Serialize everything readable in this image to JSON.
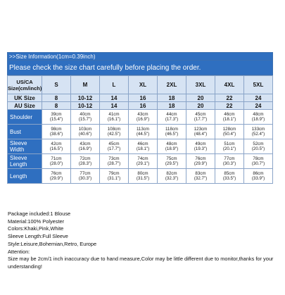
{
  "header": {
    "line1": ">>Size Information(1cm=0.39inch)",
    "line2": "Please check the size chart carefully before placing the order."
  },
  "table": {
    "corner_label": "US/CA Size(cm/inch)",
    "sizes": [
      "S",
      "M",
      "L",
      "XL",
      "2XL",
      "3XL",
      "4XL",
      "5XL"
    ],
    "uk_label": "UK Size",
    "uk_sizes": [
      "8",
      "10-12",
      "14",
      "16",
      "18",
      "20",
      "22",
      "24"
    ],
    "au_label": "AU Size",
    "au_sizes": [
      "8",
      "10-12",
      "14",
      "16",
      "18",
      "20",
      "22",
      "24"
    ],
    "rows": [
      {
        "label": "Shoulder",
        "values": [
          [
            "39cm",
            "(15.4\")"
          ],
          [
            "40cm",
            "(15.7\")"
          ],
          [
            "41cm",
            "(16.1\")"
          ],
          [
            "43cm",
            "(16.9\")"
          ],
          [
            "44cm",
            "(17.3\")"
          ],
          [
            "45cm",
            "(17.7\")"
          ],
          [
            "46cm",
            "(18.1\")"
          ],
          [
            "48cm",
            "(18.9\")"
          ]
        ]
      },
      {
        "label": "Bust",
        "values": [
          [
            "98cm",
            "(38.6\")"
          ],
          [
            "103cm",
            "(40.6\")"
          ],
          [
            "108cm",
            "(42.5\")"
          ],
          [
            "113cm",
            "(44.5\")"
          ],
          [
            "118cm",
            "(46.5\")"
          ],
          [
            "123cm",
            "(48.4\")"
          ],
          [
            "128cm",
            "(50.4\")"
          ],
          [
            "133cm",
            "(52.4\")"
          ]
        ]
      },
      {
        "label": "Sleeve Width",
        "values": [
          [
            "42cm",
            "(16.5\")"
          ],
          [
            "43cm",
            "(16.9\")"
          ],
          [
            "45cm",
            "(17.7\")"
          ],
          [
            "46cm",
            "(18.1\")"
          ],
          [
            "48cm",
            "(18.9\")"
          ],
          [
            "49cm",
            "(19.3\")"
          ],
          [
            "51cm",
            "(20.1\")"
          ],
          [
            "52cm",
            "(20.5\")"
          ]
        ]
      },
      {
        "label": "Sleeve Length",
        "values": [
          [
            "71cm",
            "(28.0\")"
          ],
          [
            "72cm",
            "(28.3\")"
          ],
          [
            "73cm",
            "(28.7\")"
          ],
          [
            "74cm",
            "(29.1\")"
          ],
          [
            "75cm",
            "(29.5\")"
          ],
          [
            "76cm",
            "(29.9\")"
          ],
          [
            "77cm",
            "(30.3\")"
          ],
          [
            "78cm",
            "(30.7\")"
          ]
        ]
      },
      {
        "label": "Length",
        "values": [
          [
            "76cm",
            "(29.9\")"
          ],
          [
            "77cm",
            "(30.3\")"
          ],
          [
            "79cm",
            "(31.1\")"
          ],
          [
            "80cm",
            "(31.5\")"
          ],
          [
            "82cm",
            "(32.3\")"
          ],
          [
            "83cm",
            "(32.7\")"
          ],
          [
            "85cm",
            "(33.5\")"
          ],
          [
            "86cm",
            "(33.9\")"
          ]
        ]
      }
    ]
  },
  "notes": {
    "package": "Package included:1 Blouse",
    "material": "Material:100% Polyester",
    "colors": "Colors:Khaki,Pink,White",
    "sleeve": "Sleeve Length:Full Sleeve",
    "style": "Style:Leisure,Bohemian,Retro, Europe",
    "attention": "Attention:",
    "disclaimer": "Size may be 2cm/1 inch inaccuracy due to hand measure,Color may be little different due to monitor,thanks for your understanding!"
  },
  "colors": {
    "header_blue": "#2f6fc0",
    "light_blue": "#d6e3f3",
    "border": "#8aa4c8"
  }
}
